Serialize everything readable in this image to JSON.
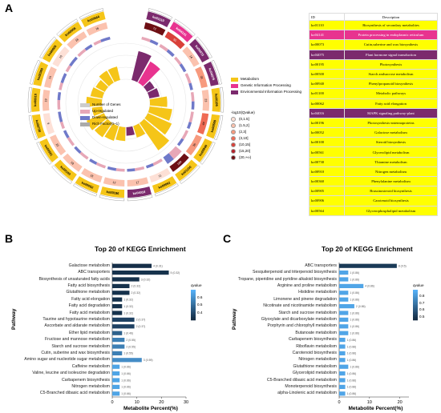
{
  "panels": {
    "a": "A",
    "b": "B",
    "c": "C"
  },
  "circle": {
    "ids": [
      "ko01110",
      "ko04141",
      "ko00073",
      "ko04075",
      "ko00195",
      "ko00500",
      "ko00940",
      "ko01100",
      "ko00062",
      "ko04016",
      "ko00196",
      "ko00052",
      "ko00100",
      "ko00561",
      "ko00730",
      "ko00910",
      "ko00360",
      "ko00905",
      "ko00906",
      "ko00564"
    ],
    "counts": [
      72,
      55,
      14,
      31,
      23,
      44,
      35,
      189,
      11,
      17,
      12,
      15,
      18,
      22,
      9,
      19,
      14,
      10,
      16,
      16
    ],
    "colors": {
      "metabolism": "#f5c518",
      "genetic": "#e8338f",
      "environmental": "#7b2a6d",
      "up": "#e7a7b7",
      "down": "#6f79c9",
      "rich": "#f5c518"
    },
    "categories": [
      "env",
      "genetic",
      "env",
      "env",
      "metab",
      "metab",
      "metab",
      "metab",
      "metab",
      "env",
      "metab",
      "metab",
      "metab",
      "metab",
      "metab",
      "metab",
      "metab",
      "metab",
      "metab",
      "metab"
    ],
    "rich_factor": [
      0.75,
      0.6,
      0.15,
      0.2,
      0.4,
      0.55,
      0.65,
      0.85,
      0.25,
      0.15,
      0.3,
      0.35,
      0.4,
      0.45,
      0.2,
      0.35,
      0.25,
      0.2,
      0.3,
      0.3
    ],
    "up_counts": [
      14,
      18,
      3,
      12,
      8,
      16,
      11,
      52,
      4,
      6,
      3,
      5,
      6,
      7,
      2,
      6,
      3,
      2,
      5,
      4
    ],
    "down_counts": [
      13,
      16,
      3,
      8,
      7,
      10,
      9,
      37,
      3,
      5,
      3,
      4,
      5,
      6,
      3,
      5,
      4,
      3,
      4,
      5
    ],
    "scale": [
      "0",
      "15",
      "30",
      "45",
      "60"
    ]
  },
  "legend": {
    "categories": [
      {
        "label": "Metabolism",
        "color": "#f5c518"
      },
      {
        "label": "Genetic Information Processing",
        "color": "#e8338f"
      },
      {
        "label": "Environmental Information Processing",
        "color": "#7b2a6d"
      }
    ],
    "layers": [
      {
        "label": "Number of Genes",
        "color": "#cccccc"
      },
      {
        "label": "Up-regulated",
        "color": "#e7a7b7"
      },
      {
        "label": "Down-regulated",
        "color": "#6f79c9"
      },
      {
        "label": "Rich Factor(0~1)",
        "color": "#aaaaaa"
      }
    ],
    "qvalue_title": "-log10(Qvalue)",
    "qvalue_bins": [
      {
        "label": "(0,1.5]",
        "color": "#fde0d6"
      },
      {
        "label": "(1.5,2]",
        "color": "#fbc2ae"
      },
      {
        "label": "(2,3]",
        "color": "#f79a7e"
      },
      {
        "label": "(3,10]",
        "color": "#ef6b55"
      },
      {
        "label": "(10,15]",
        "color": "#d9413a"
      },
      {
        "label": "(15,20]",
        "color": "#b5212b"
      },
      {
        "label": "(20,+∞)",
        "color": "#6e0f14"
      }
    ]
  },
  "id_table": {
    "header": {
      "id": "ID",
      "desc": "Description"
    },
    "rows": [
      {
        "id": "ko01110",
        "desc": "Biosynthesis of secondary metabolites",
        "color": "#ffff00"
      },
      {
        "id": "ko04141",
        "desc": "Protein processing in endoplasmic reticulum",
        "color": "#e8338f"
      },
      {
        "id": "ko00073",
        "desc": "Cutin,suberine and wax biosynthesis",
        "color": "#ffff00"
      },
      {
        "id": "ko04075",
        "desc": "Plant hormone signal transduction",
        "color": "#7b2a6d"
      },
      {
        "id": "ko00195",
        "desc": "Photosynthesis",
        "color": "#ffff00"
      },
      {
        "id": "ko00500",
        "desc": "Starch andsucrose metabolism",
        "color": "#ffff00"
      },
      {
        "id": "ko00940",
        "desc": "Phenylpropanoid biosynthesis",
        "color": "#ffff00"
      },
      {
        "id": "ko01100",
        "desc": "Metabolic pathways",
        "color": "#ffff00"
      },
      {
        "id": "ko00062",
        "desc": "Fatty acid elongation",
        "color": "#ffff00"
      },
      {
        "id": "ko04016",
        "desc": "MAPK signaling pathway-plant",
        "color": "#7b2a6d"
      },
      {
        "id": "ko00196",
        "desc": "Photosynthesis-antennaproteins",
        "color": "#ffff00"
      },
      {
        "id": "ko00052",
        "desc": "Galactose metabolism",
        "color": "#ffff00"
      },
      {
        "id": "ko00100",
        "desc": "Steroid biosynthesis",
        "color": "#ffff00"
      },
      {
        "id": "ko00561",
        "desc": "Glycerolipid metabolism",
        "color": "#ffff00"
      },
      {
        "id": "ko00730",
        "desc": "Thiamine metabolism",
        "color": "#ffff00"
      },
      {
        "id": "ko00910",
        "desc": "Nitrogen metabolism",
        "color": "#ffff00"
      },
      {
        "id": "ko00360",
        "desc": "Phenylalanine metabolism",
        "color": "#ffff00"
      },
      {
        "id": "ko00905",
        "desc": "Brassinosteroid biosynthesis",
        "color": "#ffff00"
      },
      {
        "id": "ko00906",
        "desc": "Carotenoid biosynthesis",
        "color": "#ffff00"
      },
      {
        "id": "ko00564",
        "desc": "Glycerophospholipid metabolism",
        "color": "#ffff00"
      }
    ]
  },
  "chart_data": [
    {
      "type": "bar",
      "title": "Top 20 of KEGG Enrichment",
      "xlabel": "Metabolite Percent(%)",
      "ylabel": "Pathway",
      "xlim": [
        0,
        30
      ],
      "xticks": [
        "0",
        "10",
        "20",
        "30"
      ],
      "categories": [
        "Galactose metabolism",
        "ABC transporters",
        "Biosynthesis of unsaturated fatty acids",
        "Fatty acid biosynthesis",
        "Glutathione metabolism",
        "Fatty acid elongation",
        "Fatty acid degradation",
        "Fatty acid metabolism",
        "Taurine and hypotaurine metabolism",
        "Ascorbate and aldarate metabolism",
        "Ether lipid metabolism",
        "Fructose and mannose metabolism",
        "Starch and sucrose metabolism",
        "Cutin, suberine and wax biosynthesis",
        "Amino sugar and nucleotide sugar metabolism",
        "Caffeine metabolism",
        "Valine, leucine and isoleucine degradation",
        "Carbapenem biosynthesis",
        "Nitrogen metabolism",
        "C5-Branched dibasic acid metabolism"
      ],
      "values": [
        16,
        23,
        11,
        7,
        7,
        4,
        4,
        4,
        9,
        9,
        4,
        5,
        5,
        4,
        12,
        3,
        3,
        3,
        3,
        3
      ],
      "data_labels": [
        "4 (0.31)",
        "5 (0.32)",
        "3 (0.32)",
        "2 (0.32)",
        "2 (0.32)",
        "1 (0.32)",
        "1 (0.32)",
        "1 (0.32)",
        "2 (0.37)",
        "2 (0.37)",
        "1 (0.46)",
        "2 (0.55)",
        "2 (0.55)",
        "1 (0.55)",
        "3 (0.59)",
        "1 (0.66)",
        "1 (0.66)",
        "1 (0.66)",
        "1 (0.66)",
        "1 (0.66)"
      ],
      "qvalues": [
        0.31,
        0.32,
        0.32,
        0.32,
        0.32,
        0.32,
        0.32,
        0.32,
        0.37,
        0.37,
        0.46,
        0.55,
        0.55,
        0.55,
        0.59,
        0.66,
        0.66,
        0.66,
        0.66,
        0.66
      ],
      "legend_title": "qvalue",
      "legend_ticks": [
        "0.6",
        "0.5",
        "0.4"
      ],
      "qlim": [
        0.3,
        0.7
      ]
    },
    {
      "type": "bar",
      "title": "Top 20 of KEGG Enrichment",
      "xlabel": "Metabolite Percent(%)",
      "ylabel": "Pathway",
      "xlim": [
        0,
        23
      ],
      "xticks": [
        "0",
        "10",
        "20"
      ],
      "categories": [
        "ABC transporters",
        "Sesquiterpenoid and triterpenoid biosynthesis",
        "Tropane, piperidine and pyridine alkaloid biosynthesis",
        "Arginine and proline metabolism",
        "Histidine metabolism",
        "Limonene and pinene degradation",
        "Nicotinate and nicotinamide metabolism",
        "Starch and sucrose metabolism",
        "Glyoxylate and dicarboxylate metabolism",
        "Porphyrin and chlorophyll metabolism",
        "Butanoate metabolism",
        "Carbapenem biosynthesis",
        "Riboflavin metabolism",
        "Carotenoid biosynthesis",
        "Nitrogen metabolism",
        "Glutathione metabolism",
        "Glycerolipid metabolism",
        "C5-Branched dibasic acid metabolism",
        "Monoterpenoid biosynthesis",
        "alpha-Linolenic acid metabolism"
      ],
      "values": [
        19,
        3,
        3,
        8,
        3,
        3,
        5,
        3,
        3,
        3,
        3,
        2,
        2,
        2,
        2,
        3,
        2,
        2,
        2,
        2
      ],
      "data_labels": [
        "8 (0.5)",
        "1 (0.86)",
        "1 (0.86)",
        "4 (0.86)",
        "1 (0.86)",
        "1 (0.86)",
        "2 (0.86)",
        "1 (0.86)",
        "1 (0.86)",
        "1 (0.86)",
        "1 (0.86)",
        "1 (0.86)",
        "1 (0.86)",
        "1 (0.86)",
        "1 (0.86)",
        "1 (0.86)",
        "1 (0.86)",
        "1 (0.86)",
        "1 (0.86)",
        "1 (0.86)"
      ],
      "qvalues": [
        0.5,
        0.86,
        0.86,
        0.86,
        0.86,
        0.86,
        0.86,
        0.86,
        0.86,
        0.86,
        0.86,
        0.86,
        0.86,
        0.86,
        0.86,
        0.86,
        0.86,
        0.86,
        0.86,
        0.86
      ],
      "legend_title": "qvalue",
      "legend_ticks": [
        "0.8",
        "0.7",
        "0.6",
        "0.5"
      ],
      "qlim": [
        0.45,
        0.9
      ]
    }
  ]
}
